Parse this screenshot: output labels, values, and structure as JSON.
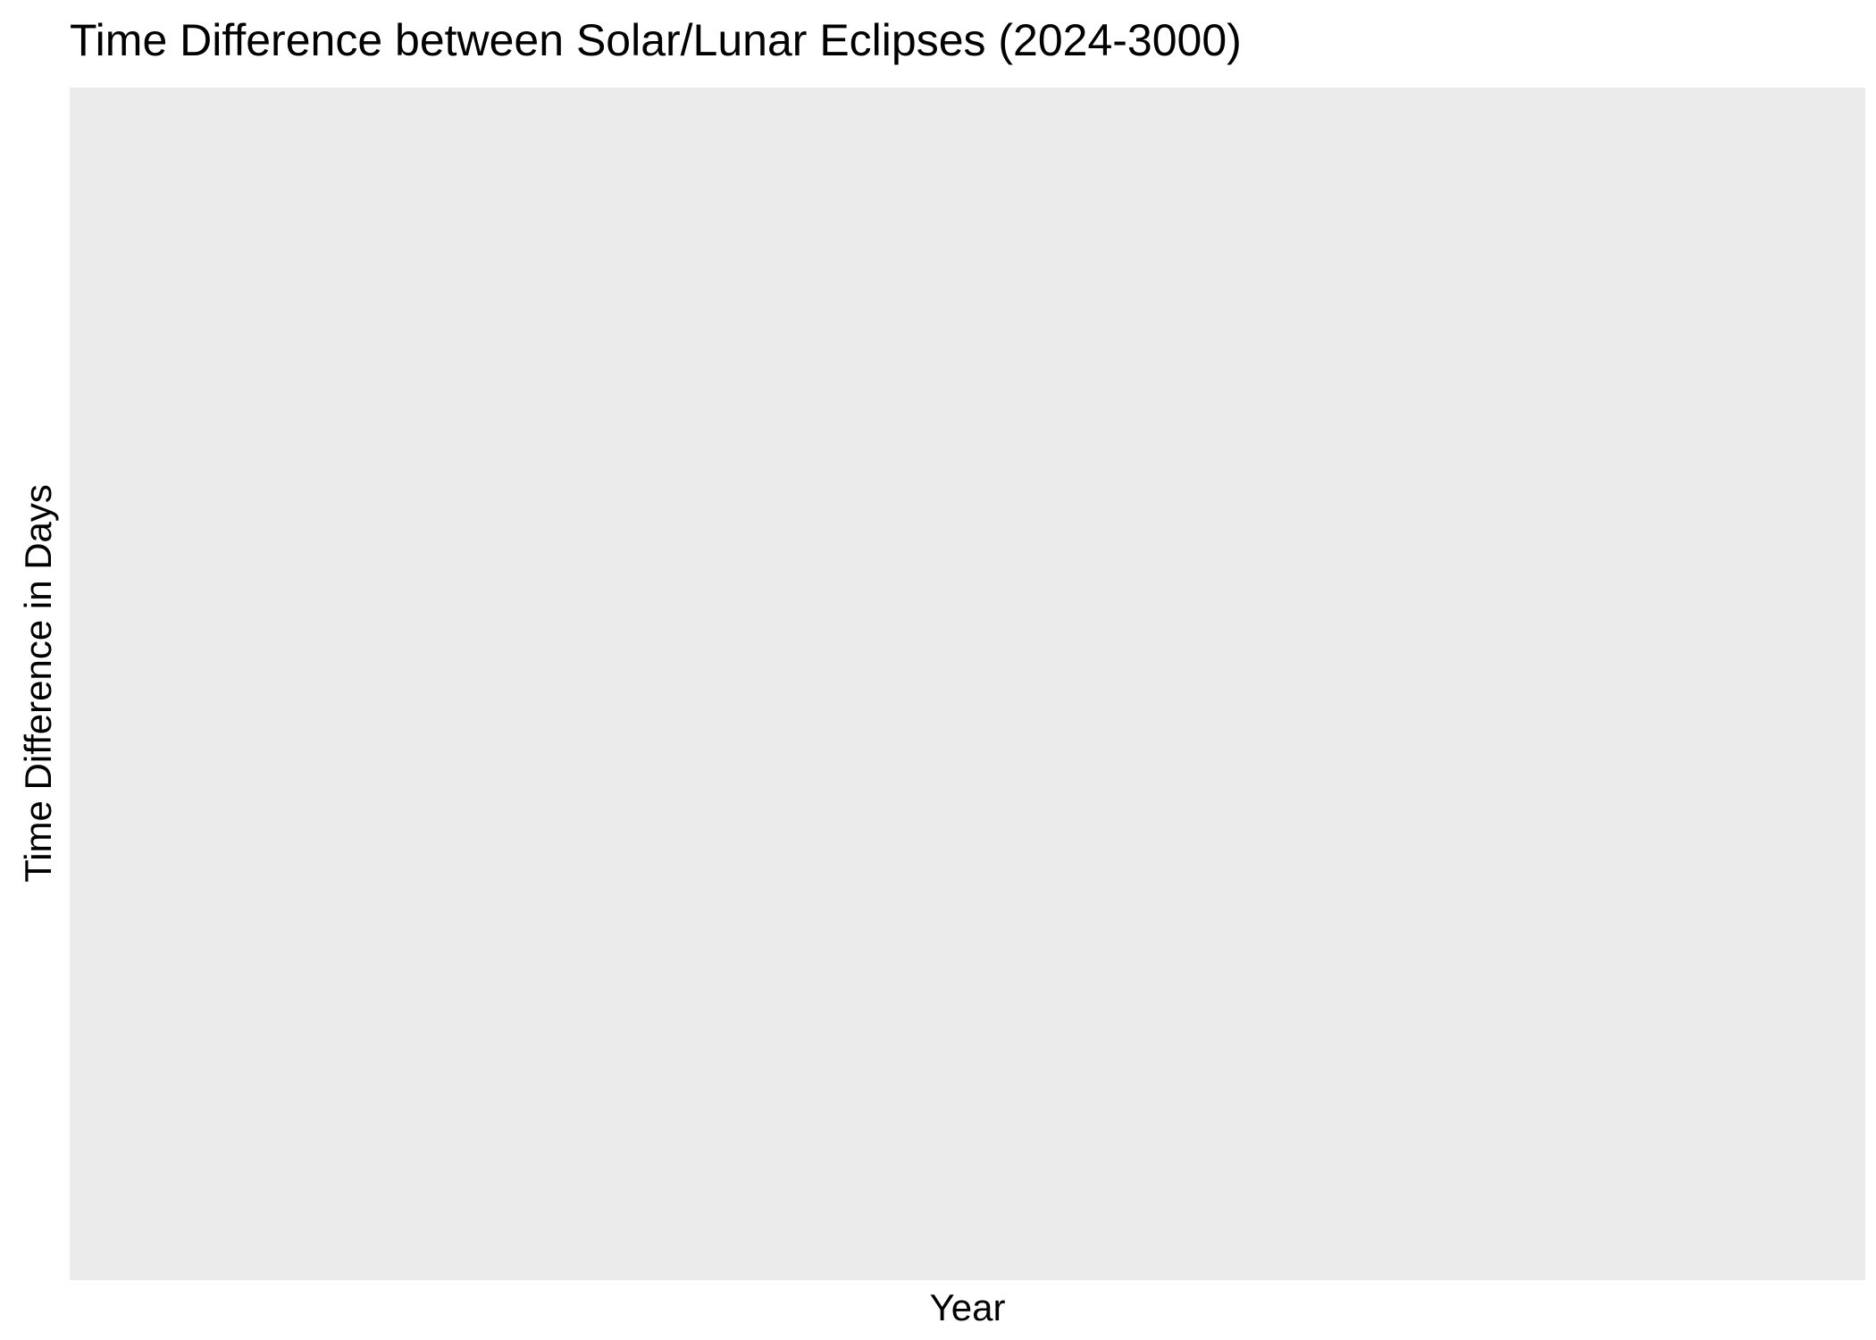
{
  "chart_data": {
    "type": "scatter",
    "title": "Time Difference between Solar/Lunar Eclipses (2024-3000)",
    "xlabel": "Year",
    "ylabel": "Time Difference in Days",
    "series": [],
    "grid": false,
    "legend": "none",
    "panel_background": "#ebebeb"
  }
}
